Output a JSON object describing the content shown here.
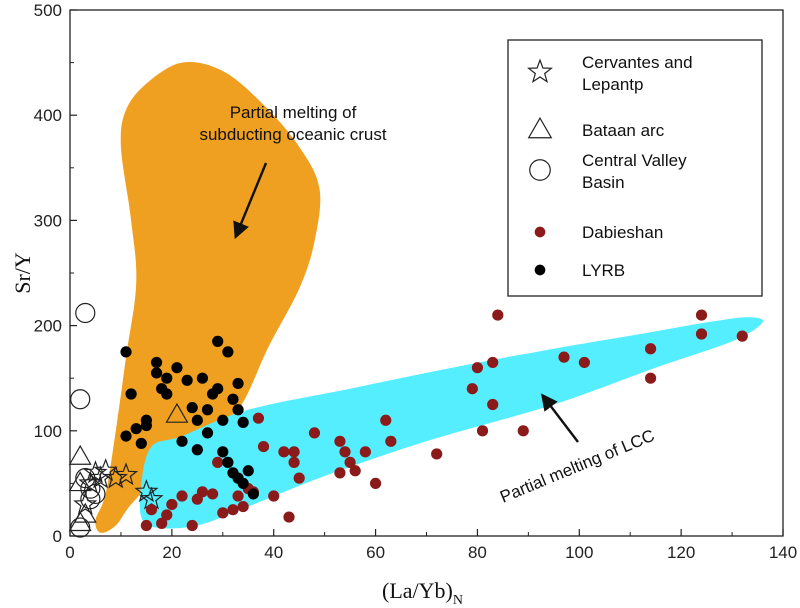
{
  "chart_data": {
    "type": "scatter",
    "title": "",
    "xlabel": "(La/Yb)",
    "xlabel_sub": "N",
    "ylabel": "Sr/Y",
    "xlim": [
      0,
      140
    ],
    "ylim": [
      0,
      500
    ],
    "x_ticks": [
      "0",
      "20",
      "40",
      "60",
      "80",
      "100",
      "120",
      "140"
    ],
    "y_ticks": [
      "0",
      "100",
      "200",
      "300",
      "400",
      "500"
    ],
    "fields": [
      {
        "name": "Partial melting of subducting oceanic crust",
        "label_lines": [
          "Partial melting of",
          "subducting oceanic crust"
        ],
        "color": "#F0A020",
        "outline": [
          [
            5,
            15
          ],
          [
            7,
            40
          ],
          [
            9,
            100
          ],
          [
            11,
            170
          ],
          [
            13,
            240
          ],
          [
            12,
            300
          ],
          [
            10,
            370
          ],
          [
            11,
            405
          ],
          [
            15,
            430
          ],
          [
            22,
            450
          ],
          [
            30,
            442
          ],
          [
            38,
            410
          ],
          [
            45,
            370
          ],
          [
            49,
            330
          ],
          [
            48,
            280
          ],
          [
            45,
            235
          ],
          [
            39,
            180
          ],
          [
            33,
            120
          ],
          [
            25,
            90
          ],
          [
            18,
            60
          ],
          [
            12,
            30
          ],
          [
            9,
            10
          ],
          [
            6,
            3
          ]
        ]
      },
      {
        "name": "Partial melting of LCC",
        "label_lines": [
          "Partial melting of LCC"
        ],
        "color": "#55EEFF",
        "outline": [
          [
            16,
            85
          ],
          [
            22,
            95
          ],
          [
            35,
            120
          ],
          [
            55,
            140
          ],
          [
            75,
            160
          ],
          [
            95,
            178
          ],
          [
            112,
            192
          ],
          [
            125,
            203
          ],
          [
            133,
            208
          ],
          [
            136,
            203
          ],
          [
            130,
            185
          ],
          [
            115,
            160
          ],
          [
            95,
            125
          ],
          [
            70,
            90
          ],
          [
            50,
            57
          ],
          [
            35,
            28
          ],
          [
            25,
            10
          ],
          [
            17,
            8
          ],
          [
            14,
            18
          ],
          [
            14,
            50
          ]
        ]
      }
    ],
    "legend_position": "top-right",
    "series": [
      {
        "name": "Cervantes and Lepantp",
        "label_lines": [
          "Cervantes and",
          "Lepantp"
        ],
        "marker": "star-open",
        "color": "#222222",
        "points": [
          [
            3,
            30
          ],
          [
            4,
            50
          ],
          [
            5,
            60
          ],
          [
            6,
            55
          ],
          [
            7,
            62
          ],
          [
            9,
            55
          ],
          [
            11,
            58
          ],
          [
            15,
            42
          ],
          [
            16,
            35
          ]
        ]
      },
      {
        "name": "Bataan arc",
        "label_lines": [
          "Bataan arc"
        ],
        "marker": "triangle-open",
        "color": "#222222",
        "points": [
          [
            2,
            75
          ],
          [
            2,
            50
          ],
          [
            3,
            20
          ],
          [
            2,
            12
          ],
          [
            21,
            115
          ]
        ]
      },
      {
        "name": "Central Valley Basin",
        "label_lines": [
          "Central Valley",
          "Basin"
        ],
        "marker": "circle-open",
        "color": "#222222",
        "points": [
          [
            3,
            212
          ],
          [
            2,
            130
          ],
          [
            3,
            55
          ],
          [
            4,
            45
          ],
          [
            5,
            40
          ],
          [
            4,
            35
          ],
          [
            2,
            8
          ]
        ]
      },
      {
        "name": "Dabieshan",
        "label_lines": [
          "Dabieshan"
        ],
        "marker": "circle-filled",
        "color": "#8B1A1A",
        "points": [
          [
            15,
            10
          ],
          [
            16,
            25
          ],
          [
            18,
            12
          ],
          [
            19,
            20
          ],
          [
            20,
            30
          ],
          [
            22,
            38
          ],
          [
            24,
            10
          ],
          [
            25,
            35
          ],
          [
            26,
            42
          ],
          [
            28,
            40
          ],
          [
            29,
            70
          ],
          [
            30,
            22
          ],
          [
            32,
            25
          ],
          [
            33,
            38
          ],
          [
            34,
            28
          ],
          [
            35,
            45
          ],
          [
            36,
            42
          ],
          [
            37,
            112
          ],
          [
            38,
            85
          ],
          [
            40,
            38
          ],
          [
            42,
            80
          ],
          [
            43,
            18
          ],
          [
            44,
            70
          ],
          [
            44,
            80
          ],
          [
            45,
            55
          ],
          [
            48,
            98
          ],
          [
            53,
            60
          ],
          [
            53,
            90
          ],
          [
            54,
            80
          ],
          [
            55,
            70
          ],
          [
            56,
            62
          ],
          [
            58,
            80
          ],
          [
            60,
            50
          ],
          [
            62,
            110
          ],
          [
            63,
            90
          ],
          [
            72,
            78
          ],
          [
            79,
            140
          ],
          [
            80,
            160
          ],
          [
            81,
            100
          ],
          [
            83,
            165
          ],
          [
            83,
            125
          ],
          [
            84,
            210
          ],
          [
            89,
            100
          ],
          [
            97,
            170
          ],
          [
            101,
            165
          ],
          [
            114,
            178
          ],
          [
            114,
            150
          ],
          [
            124,
            210
          ],
          [
            124,
            192
          ],
          [
            132,
            190
          ]
        ]
      },
      {
        "name": "LYRB",
        "label_lines": [
          "LYRB"
        ],
        "marker": "circle-filled",
        "color": "#000000",
        "points": [
          [
            11,
            175
          ],
          [
            11,
            95
          ],
          [
            12,
            135
          ],
          [
            13,
            102
          ],
          [
            14,
            88
          ],
          [
            15,
            105
          ],
          [
            15,
            110
          ],
          [
            17,
            165
          ],
          [
            17,
            155
          ],
          [
            18,
            140
          ],
          [
            19,
            135
          ],
          [
            19,
            150
          ],
          [
            21,
            160
          ],
          [
            22,
            90
          ],
          [
            23,
            148
          ],
          [
            24,
            122
          ],
          [
            25,
            110
          ],
          [
            25,
            82
          ],
          [
            26,
            150
          ],
          [
            27,
            120
          ],
          [
            27,
            98
          ],
          [
            28,
            135
          ],
          [
            29,
            140
          ],
          [
            29,
            185
          ],
          [
            30,
            110
          ],
          [
            31,
            175
          ],
          [
            32,
            130
          ],
          [
            33,
            120
          ],
          [
            33,
            145
          ],
          [
            34,
            108
          ],
          [
            30,
            80
          ],
          [
            31,
            70
          ],
          [
            32,
            60
          ],
          [
            33,
            55
          ],
          [
            34,
            50
          ],
          [
            35,
            62
          ],
          [
            36,
            40
          ]
        ]
      }
    ]
  }
}
